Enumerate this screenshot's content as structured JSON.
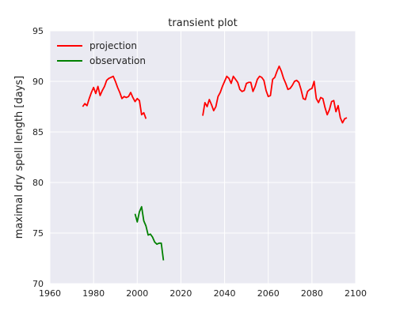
{
  "chart_data": {
    "type": "line",
    "title": "transient plot",
    "xlabel": "",
    "ylabel": "maximal dry spell length [days]",
    "xlim": [
      1960,
      2100
    ],
    "ylim": [
      70,
      95
    ],
    "xticks": [
      "1960",
      "1980",
      "2000",
      "2020",
      "2040",
      "2060",
      "2080",
      "2100"
    ],
    "yticks": [
      "70",
      "75",
      "80",
      "85",
      "90",
      "95"
    ],
    "grid": true,
    "legend_placement": "top-left",
    "series": [
      {
        "name": "projection",
        "color": "#ff0000",
        "segments": [
          {
            "x": [
              1975,
              1976,
              1977,
              1978,
              1979,
              1980,
              1981,
              1982,
              1983,
              1984,
              1985,
              1986,
              1987,
              1988,
              1989,
              1990,
              1991,
              1992,
              1993,
              1994,
              1995,
              1996,
              1997,
              1998,
              1999,
              2000,
              2001,
              2002,
              2003,
              2004
            ],
            "y": [
              87.5,
              87.8,
              87.6,
              88.3,
              88.9,
              89.4,
              88.8,
              89.5,
              88.6,
              89.1,
              89.5,
              90.1,
              90.3,
              90.4,
              90.5,
              90.0,
              89.4,
              88.9,
              88.3,
              88.5,
              88.4,
              88.5,
              88.9,
              88.4,
              88.0,
              88.3,
              88.1,
              86.7,
              86.9,
              86.3
            ]
          },
          {
            "x": [
              2030,
              2031,
              2032,
              2033,
              2034,
              2035,
              2036,
              2037,
              2038,
              2039,
              2040,
              2041,
              2042,
              2043,
              2044,
              2045,
              2046,
              2047,
              2048,
              2049,
              2050,
              2051,
              2052,
              2053,
              2054,
              2055,
              2056,
              2057,
              2058,
              2059,
              2060,
              2061,
              2062,
              2063,
              2064,
              2065,
              2066,
              2067,
              2068,
              2069,
              2070,
              2071,
              2072,
              2073,
              2074,
              2075,
              2076,
              2077,
              2078,
              2079,
              2080,
              2081,
              2082,
              2083,
              2084,
              2085,
              2086,
              2087,
              2088,
              2089,
              2090,
              2091,
              2092,
              2093,
              2094,
              2095,
              2096
            ],
            "y": [
              86.6,
              87.9,
              87.5,
              88.2,
              87.7,
              87.1,
              87.5,
              88.5,
              88.9,
              89.5,
              90.0,
              90.5,
              90.3,
              89.8,
              90.5,
              90.2,
              89.9,
              89.2,
              89.0,
              89.1,
              89.8,
              89.9,
              89.9,
              89.0,
              89.5,
              90.2,
              90.5,
              90.4,
              90.1,
              89.1,
              88.5,
              88.6,
              90.2,
              90.4,
              91.0,
              91.5,
              91.0,
              90.3,
              89.8,
              89.2,
              89.3,
              89.6,
              90.0,
              90.1,
              89.9,
              89.2,
              88.3,
              88.2,
              89.0,
              89.2,
              89.3,
              90.0,
              88.3,
              87.9,
              88.4,
              88.3,
              87.4,
              86.7,
              87.2,
              88.0,
              88.1,
              87.0,
              87.6,
              86.4,
              85.9,
              86.3,
              86.4
            ]
          }
        ]
      },
      {
        "name": "observation",
        "color": "#008000",
        "segments": [
          {
            "x": [
              1999,
              2000,
              2001,
              2002,
              2003,
              2004,
              2005,
              2006,
              2007,
              2008,
              2009,
              2010,
              2011,
              2012
            ],
            "y": [
              76.9,
              76.1,
              77.1,
              77.6,
              76.2,
              75.7,
              74.8,
              74.9,
              74.6,
              74.1,
              73.9,
              74.0,
              74.0,
              72.3
            ]
          }
        ]
      }
    ]
  }
}
